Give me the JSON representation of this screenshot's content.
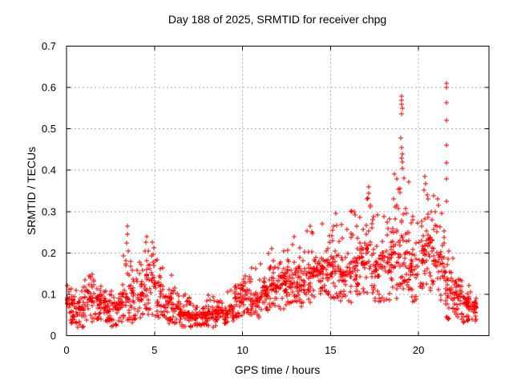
{
  "window": {
    "background": "#ffffff"
  },
  "chart_data": {
    "type": "scatter",
    "title": "Day 188 of 2025, SRMTID for receiver chpg",
    "xlabel": "GPS time / hours",
    "ylabel": "SRMTID / TECUs",
    "xlim": [
      0,
      24
    ],
    "ylim": [
      0,
      0.7
    ],
    "xticks": {
      "values": [
        0,
        5,
        10,
        15,
        20
      ],
      "labels": [
        "0",
        "5",
        "10",
        "15",
        "20"
      ]
    },
    "yticks": {
      "values": [
        0,
        0.1,
        0.2,
        0.3,
        0.4,
        0.5,
        0.6,
        0.7
      ],
      "labels": [
        "0",
        "0.1",
        "0.2",
        "0.3",
        "0.4",
        "0.5",
        "0.6",
        "0.7"
      ]
    },
    "grid": {
      "show": true,
      "color": "#ababab",
      "dash": [
        2,
        3
      ]
    },
    "axis_color": "#000000",
    "legend": null,
    "marker": {
      "shape": "plus",
      "color": "#ff0000",
      "size": 7
    },
    "seed": 188,
    "density_bins": [
      [
        0.0,
        0.5,
        0.03,
        0.05,
        0.11,
        0.13,
        40
      ],
      [
        0.5,
        1.0,
        0.02,
        0.04,
        0.09,
        0.12,
        38
      ],
      [
        1.0,
        1.5,
        0.03,
        0.06,
        0.13,
        0.17,
        40
      ],
      [
        1.5,
        2.0,
        0.03,
        0.06,
        0.12,
        0.16,
        38
      ],
      [
        2.0,
        2.5,
        0.03,
        0.05,
        0.1,
        0.13,
        36
      ],
      [
        2.5,
        3.0,
        0.02,
        0.04,
        0.09,
        0.11,
        36
      ],
      [
        3.0,
        3.5,
        0.03,
        0.05,
        0.12,
        0.21,
        38
      ],
      [
        3.5,
        4.0,
        0.03,
        0.05,
        0.13,
        0.2,
        36
      ],
      [
        4.0,
        4.5,
        0.04,
        0.06,
        0.13,
        0.18,
        36
      ],
      [
        4.5,
        5.0,
        0.04,
        0.08,
        0.2,
        0.23,
        40
      ],
      [
        5.0,
        5.5,
        0.04,
        0.06,
        0.14,
        0.19,
        36
      ],
      [
        5.5,
        6.0,
        0.03,
        0.05,
        0.11,
        0.15,
        36
      ],
      [
        6.0,
        6.5,
        0.03,
        0.04,
        0.09,
        0.12,
        38
      ],
      [
        6.5,
        7.0,
        0.02,
        0.03,
        0.07,
        0.1,
        40
      ],
      [
        7.0,
        7.5,
        0.02,
        0.03,
        0.06,
        0.08,
        42
      ],
      [
        7.5,
        8.0,
        0.02,
        0.03,
        0.06,
        0.09,
        42
      ],
      [
        8.0,
        8.5,
        0.02,
        0.03,
        0.07,
        0.1,
        38
      ],
      [
        8.5,
        9.0,
        0.03,
        0.04,
        0.08,
        0.1,
        36
      ],
      [
        9.0,
        9.5,
        0.03,
        0.04,
        0.08,
        0.11,
        34
      ],
      [
        9.5,
        10.0,
        0.04,
        0.06,
        0.12,
        0.15,
        38
      ],
      [
        10.0,
        10.5,
        0.05,
        0.07,
        0.13,
        0.16,
        38
      ],
      [
        10.5,
        11.0,
        0.04,
        0.06,
        0.11,
        0.2,
        36
      ],
      [
        11.0,
        11.5,
        0.05,
        0.08,
        0.14,
        0.23,
        38
      ],
      [
        11.5,
        12.0,
        0.06,
        0.09,
        0.16,
        0.22,
        40
      ],
      [
        12.0,
        12.5,
        0.06,
        0.09,
        0.16,
        0.24,
        40
      ],
      [
        12.5,
        13.0,
        0.07,
        0.1,
        0.18,
        0.25,
        40
      ],
      [
        13.0,
        13.5,
        0.07,
        0.1,
        0.18,
        0.26,
        40
      ],
      [
        13.5,
        14.0,
        0.08,
        0.11,
        0.19,
        0.27,
        40
      ],
      [
        14.0,
        14.5,
        0.08,
        0.12,
        0.2,
        0.25,
        40
      ],
      [
        14.5,
        15.0,
        0.09,
        0.12,
        0.21,
        0.28,
        40
      ],
      [
        15.0,
        15.5,
        0.09,
        0.12,
        0.22,
        0.3,
        40
      ],
      [
        15.5,
        16.0,
        0.08,
        0.11,
        0.2,
        0.27,
        38
      ],
      [
        16.0,
        16.5,
        0.08,
        0.12,
        0.2,
        0.31,
        38
      ],
      [
        16.5,
        17.0,
        0.1,
        0.13,
        0.25,
        0.33,
        38
      ],
      [
        17.0,
        17.5,
        0.1,
        0.13,
        0.28,
        0.36,
        38
      ],
      [
        17.5,
        18.0,
        0.08,
        0.11,
        0.24,
        0.31,
        38
      ],
      [
        18.0,
        18.5,
        0.08,
        0.11,
        0.25,
        0.3,
        38
      ],
      [
        18.5,
        19.0,
        0.09,
        0.13,
        0.3,
        0.4,
        40
      ],
      [
        19.0,
        19.5,
        0.1,
        0.15,
        0.32,
        0.4,
        40
      ],
      [
        19.5,
        20.0,
        0.08,
        0.12,
        0.22,
        0.3,
        34
      ],
      [
        20.0,
        20.5,
        0.1,
        0.13,
        0.26,
        0.34,
        38
      ],
      [
        20.5,
        21.0,
        0.1,
        0.14,
        0.28,
        0.35,
        38
      ],
      [
        21.0,
        21.5,
        0.08,
        0.12,
        0.25,
        0.33,
        36
      ],
      [
        21.5,
        22.0,
        0.04,
        0.07,
        0.15,
        0.22,
        40
      ],
      [
        22.0,
        22.5,
        0.04,
        0.06,
        0.13,
        0.16,
        42
      ],
      [
        22.5,
        23.0,
        0.03,
        0.05,
        0.11,
        0.14,
        40
      ],
      [
        23.0,
        23.3,
        0.03,
        0.04,
        0.09,
        0.12,
        24
      ]
    ],
    "outlier_points": [
      [
        3.44,
        0.265
      ],
      [
        3.46,
        0.246
      ],
      [
        3.42,
        0.224
      ],
      [
        3.5,
        0.205
      ],
      [
        4.55,
        0.24
      ],
      [
        4.52,
        0.225
      ],
      [
        4.45,
        0.205
      ],
      [
        15.3,
        0.295
      ],
      [
        16.2,
        0.3
      ],
      [
        17.15,
        0.36
      ],
      [
        17.18,
        0.345
      ],
      [
        17.1,
        0.33
      ],
      [
        18.6,
        0.33
      ],
      [
        18.65,
        0.312
      ],
      [
        19.03,
        0.579
      ],
      [
        19.05,
        0.569
      ],
      [
        19.04,
        0.559
      ],
      [
        19.06,
        0.549
      ],
      [
        19.03,
        0.536
      ],
      [
        19.0,
        0.478
      ],
      [
        19.05,
        0.455
      ],
      [
        19.08,
        0.44
      ],
      [
        19.02,
        0.43
      ],
      [
        19.06,
        0.42
      ],
      [
        19.1,
        0.405
      ],
      [
        20.35,
        0.385
      ],
      [
        20.38,
        0.368
      ],
      [
        20.32,
        0.352
      ],
      [
        20.5,
        0.34
      ],
      [
        20.55,
        0.33
      ],
      [
        21.1,
        0.33
      ],
      [
        21.12,
        0.315
      ],
      [
        21.58,
        0.61
      ],
      [
        21.6,
        0.6
      ],
      [
        21.58,
        0.563
      ],
      [
        21.59,
        0.521
      ],
      [
        21.58,
        0.461
      ],
      [
        21.6,
        0.418
      ],
      [
        21.58,
        0.379
      ],
      [
        21.59,
        0.325
      ]
    ]
  }
}
